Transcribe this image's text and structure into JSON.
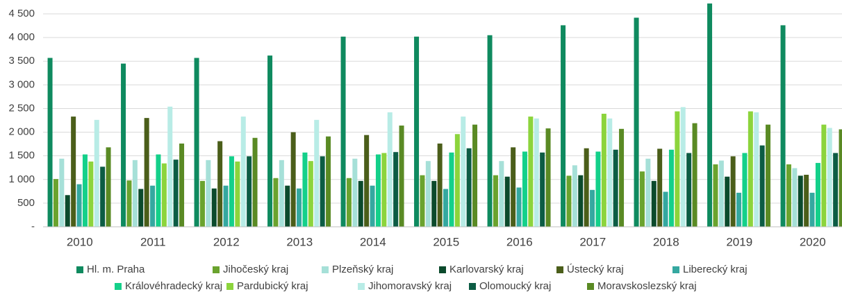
{
  "chart_data": {
    "type": "bar",
    "categories": [
      "2010",
      "2011",
      "2012",
      "2013",
      "2014",
      "2015",
      "2016",
      "2017",
      "2018",
      "2019",
      "2020"
    ],
    "ylim": [
      0,
      4750
    ],
    "yticks": [
      {
        "value": 0,
        "label": "-"
      },
      500,
      {
        "value": 1000,
        "label": "1 000"
      },
      {
        "value": 1500,
        "label": "1 500"
      },
      {
        "value": 2000,
        "label": "2 000"
      },
      {
        "value": 2500,
        "label": "2 500"
      },
      {
        "value": 3000,
        "label": "3 000"
      },
      {
        "value": 3500,
        "label": "3 500"
      },
      {
        "value": 4000,
        "label": "4 000"
      },
      {
        "value": 4500,
        "label": "4 500"
      }
    ],
    "grid": true,
    "legend": "bottom",
    "series": [
      {
        "name": "Hl. m. Praha",
        "color": "#0f8a5f",
        "values": [
          3570,
          3450,
          3570,
          3620,
          4020,
          4020,
          4050,
          4260,
          4420,
          4720,
          4260
        ]
      },
      {
        "name": "Jihočeský kraj",
        "color": "#6aa32e",
        "values": [
          1010,
          980,
          970,
          1030,
          1030,
          1090,
          1090,
          1080,
          1170,
          1320,
          1320
        ]
      },
      {
        "name": "Plzeňský kraj",
        "color": "#a6e0d8",
        "values": [
          1440,
          1410,
          1410,
          1410,
          1440,
          1390,
          1390,
          1300,
          1440,
          1400,
          1240
        ]
      },
      {
        "name": "Karlovarský kraj",
        "color": "#0b4a2c",
        "values": [
          670,
          800,
          810,
          870,
          970,
          970,
          1060,
          1090,
          970,
          1060,
          1080
        ]
      },
      {
        "name": "Ústecký kraj",
        "color": "#4b5e1a",
        "values": [
          2330,
          2300,
          1810,
          2000,
          1940,
          1760,
          1680,
          1660,
          1650,
          1490,
          1100
        ]
      },
      {
        "name": "Liberecký kraj",
        "color": "#35a8a0",
        "values": [
          900,
          870,
          870,
          810,
          870,
          800,
          830,
          780,
          740,
          720,
          720
        ]
      },
      {
        "name": "Královéhradecký kraj",
        "color": "#14d08a",
        "values": [
          1530,
          1530,
          1490,
          1570,
          1530,
          1570,
          1590,
          1590,
          1630,
          1560,
          1350
        ]
      },
      {
        "name": "Pardubický kraj",
        "color": "#8cd43c",
        "values": [
          1380,
          1340,
          1380,
          1390,
          1560,
          1960,
          2330,
          2390,
          2440,
          2440,
          2160
        ]
      },
      {
        "name": "Jihomoravský kraj",
        "color": "#b8ece6",
        "values": [
          2260,
          2540,
          2330,
          2260,
          2420,
          2330,
          2290,
          2290,
          2530,
          2420,
          2090
        ]
      },
      {
        "name": "Olomoucký kraj",
        "color": "#0c5c44",
        "values": [
          1270,
          1420,
          1490,
          1490,
          1580,
          1660,
          1570,
          1630,
          1560,
          1720,
          1560
        ]
      },
      {
        "name": "Moravskoslezský kraj",
        "color": "#5a8a24",
        "values": [
          1680,
          1760,
          1880,
          1910,
          2140,
          2160,
          2080,
          2070,
          2190,
          2160,
          2060
        ]
      }
    ]
  }
}
